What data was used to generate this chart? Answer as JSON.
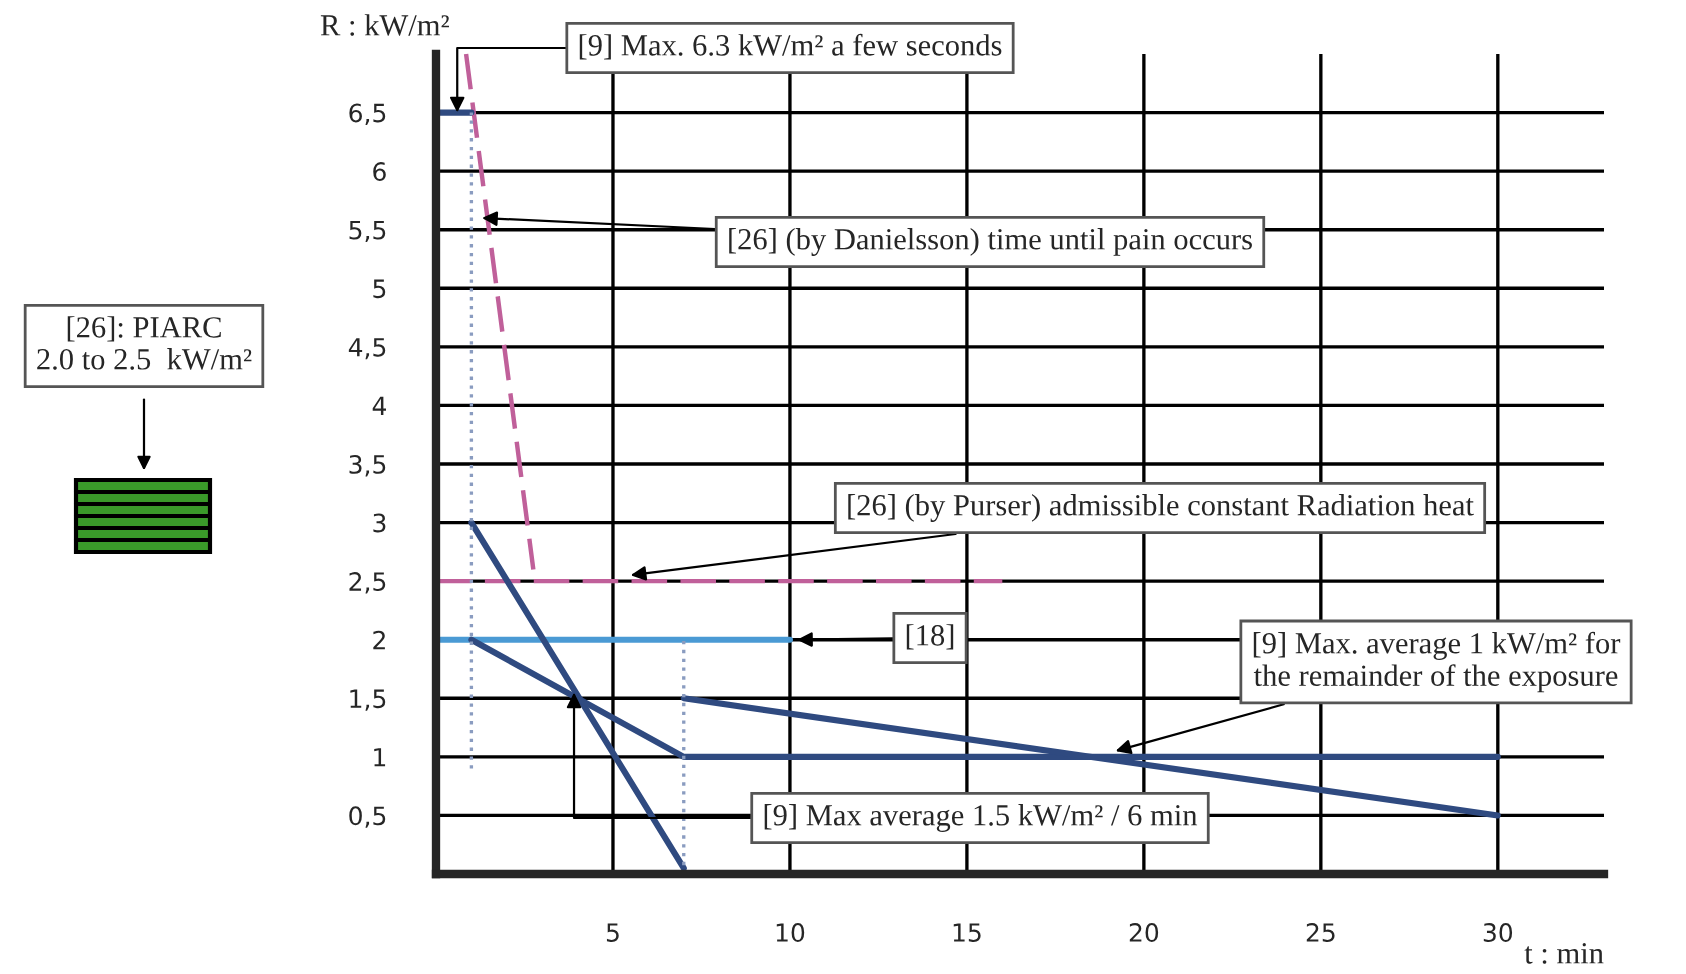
{
  "chart_data": {
    "type": "line",
    "xlabel": "t : min",
    "ylabel": "R : kW/m²",
    "xlim": [
      0,
      33
    ],
    "ylim": [
      0,
      7
    ],
    "xticks": [
      5,
      10,
      15,
      20,
      25,
      30
    ],
    "yticks": [
      {
        "value": 0.5,
        "label": "0,5"
      },
      1,
      {
        "value": 1.5,
        "label": "1,5"
      },
      2,
      {
        "value": 2.5,
        "label": "2,5"
      },
      3,
      {
        "value": 3.5,
        "label": "3,5"
      },
      4,
      {
        "value": 4.5,
        "label": "4,5"
      },
      5,
      {
        "value": 5.5,
        "label": "5,5"
      },
      6,
      {
        "value": 6.5,
        "label": "6,5"
      }
    ],
    "grid": true,
    "series": [
      {
        "color": "#c0609a",
        "line_style": "dashed",
        "x": [
          0.85,
          2.75
        ],
        "values": [
          7.0,
          2.6
        ]
      },
      {
        "color": "#c0609a",
        "line_style": "dashed",
        "x": [
          0,
          16
        ],
        "values": [
          2.5,
          2.5
        ]
      },
      {
        "color": "#4a9ad4",
        "line_style": "solid",
        "x": [
          0,
          10
        ],
        "values": [
          2,
          2
        ]
      },
      {
        "color": "#2f4a80",
        "line_style": "solid",
        "x": [
          1,
          7
        ],
        "values": [
          3,
          0.05
        ]
      },
      {
        "color": "#2f4a80",
        "line_style": "solid",
        "x": [
          1,
          7,
          30
        ],
        "values": [
          2,
          1,
          1
        ]
      },
      {
        "color": "#2f4a80",
        "line_style": "solid",
        "x": [
          7,
          30
        ],
        "values": [
          1.5,
          0.5
        ]
      },
      {
        "color": "#2f4a80",
        "line_style": "solid",
        "x": [
          0,
          1
        ],
        "values": [
          6.5,
          6.5
        ]
      },
      {
        "color": "#8a9cc0",
        "line_style": "dotted",
        "x": [
          1,
          1
        ],
        "values": [
          0.9,
          6.5
        ]
      },
      {
        "color": "#8a9cc0",
        "line_style": "dotted",
        "x": [
          7,
          7
        ],
        "values": [
          0,
          2
        ]
      }
    ],
    "annotations": [
      {
        "text": "[9] Max. 6.3 kW/m² a few seconds",
        "x": 0.6,
        "y": 6.5
      },
      {
        "text": "[26] (by Danielsson) time until pain occurs",
        "x": 1.3,
        "y": 5.6
      },
      {
        "text": "[26] (by Purser) admissible constant Radiation heat",
        "x": 5.5,
        "y": 2.55
      },
      {
        "text": "[18]",
        "x": 10.2,
        "y": 2
      },
      {
        "text": "[9] Max. average 1 kW/m² for\nthe remainder of the exposure",
        "x": 19.2,
        "y": 1.05
      },
      {
        "text": "[9] Max average 1.5 kW/m² / 6 min",
        "x": 3.9,
        "y": 1.55
      },
      "[26]: PIARC\n2.0 to 2.5  kW/m²"
    ]
  }
}
